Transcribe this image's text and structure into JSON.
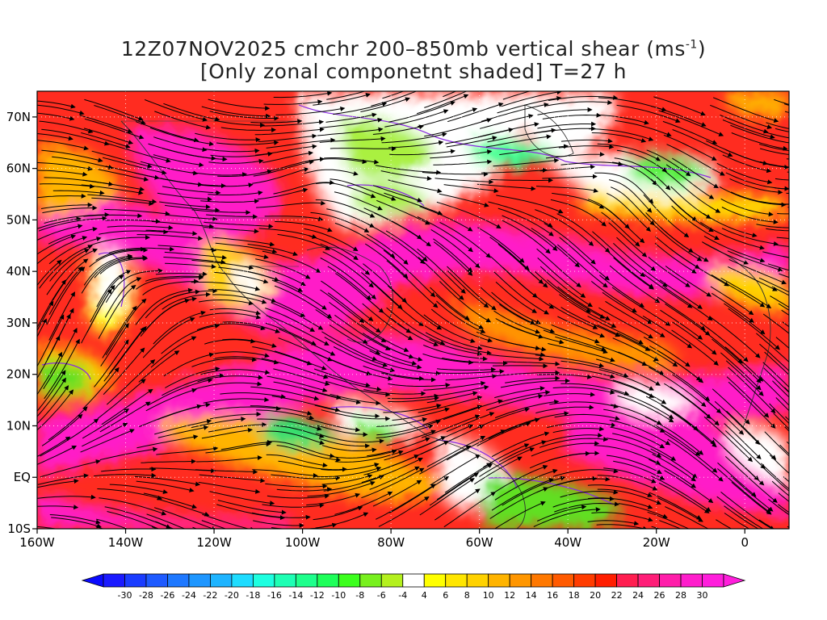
{
  "title": {
    "line1_main": "12Z07NOV2025 cmchr 200–850mb vertical shear (ms",
    "line1_sup": "-1",
    "line1_end": ")",
    "line2": "[Only zonal componetnt shaded] T=27 h"
  },
  "map": {
    "lon_range": [
      -160,
      10
    ],
    "lat_range": [
      -10,
      75
    ],
    "lat_ticks": [
      {
        "value": 70,
        "label": "70N"
      },
      {
        "value": 60,
        "label": "60N"
      },
      {
        "value": 50,
        "label": "50N"
      },
      {
        "value": 40,
        "label": "40N"
      },
      {
        "value": 30,
        "label": "30N"
      },
      {
        "value": 20,
        "label": "20N"
      },
      {
        "value": 10,
        "label": "10N"
      },
      {
        "value": 0,
        "label": "EQ"
      },
      {
        "value": -10,
        "label": "10S"
      }
    ],
    "lon_ticks": [
      {
        "value": -160,
        "label": "160W"
      },
      {
        "value": -140,
        "label": "140W"
      },
      {
        "value": -120,
        "label": "120W"
      },
      {
        "value": -100,
        "label": "100W"
      },
      {
        "value": -80,
        "label": "80W"
      },
      {
        "value": -60,
        "label": "60W"
      },
      {
        "value": -40,
        "label": "40W"
      },
      {
        "value": -20,
        "label": "20W"
      },
      {
        "value": 0,
        "label": "0"
      }
    ]
  },
  "colorbar": {
    "labels": [
      "-30",
      "-28",
      "-26",
      "-24",
      "-22",
      "-20",
      "-18",
      "-16",
      "-14",
      "-12",
      "-10",
      "-8",
      "-6",
      "-4",
      "4",
      "6",
      "8",
      "10",
      "12",
      "14",
      "16",
      "18",
      "20",
      "22",
      "24",
      "26",
      "28",
      "30"
    ],
    "colors": [
      "#1a1aff",
      "#1a3cff",
      "#1e5aff",
      "#1e78ff",
      "#1e96ff",
      "#1eb4ff",
      "#1edcff",
      "#1effe0",
      "#1effb4",
      "#1eff8c",
      "#1eff5a",
      "#3cff1e",
      "#78f01e",
      "#b4f01e",
      "#ffffff",
      "#ffff00",
      "#ffe600",
      "#ffd200",
      "#ffb400",
      "#ff9600",
      "#ff7800",
      "#ff5a00",
      "#ff3c00",
      "#ff1e00",
      "#ff1e50",
      "#ff1e78",
      "#ff1eaa",
      "#ff1ecc",
      "#ff1edc"
    ],
    "under_color": "#0a0aff",
    "over_color": "#ff1edc"
  }
}
